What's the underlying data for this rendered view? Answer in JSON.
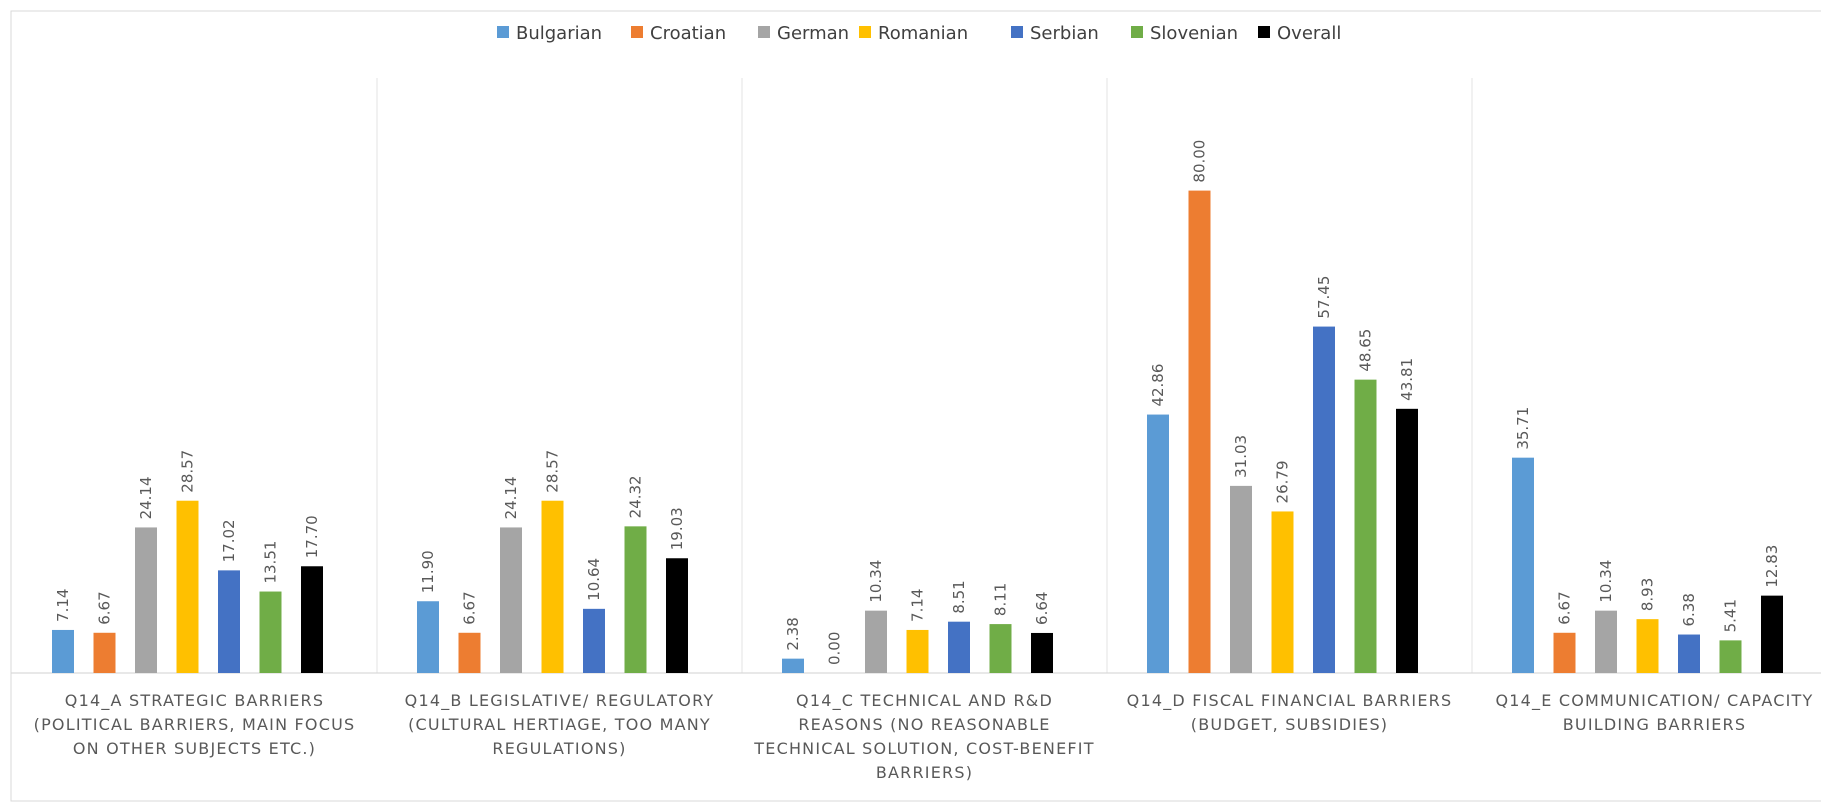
{
  "chart_data": {
    "type": "bar",
    "title": "",
    "xlabel": "",
    "ylabel": "",
    "ylim": [
      0,
      90
    ],
    "grid": false,
    "legend_position": "top",
    "categories": [
      [
        "Q14_A STRATEGIC BARRIERS",
        "(POLITICAL BARRIERS, MAIN FOCUS",
        "ON OTHER SUBJECTS ETC.)"
      ],
      [
        "Q14_B LEGISLATIVE/ REGULATORY",
        "(CULTURAL HERTIAGE, TOO MANY",
        "REGULATIONS)"
      ],
      [
        "Q14_C  TECHNICAL AND R&D",
        "REASONS (NO REASONABLE",
        "TECHNICAL SOLUTION, COST-BENEFIT",
        "BARRIERS)"
      ],
      [
        "Q14_D FISCAL FINANCIAL BARRIERS",
        "(BUDGET, SUBSIDIES)"
      ],
      [
        "Q14_E COMMUNICATION/ CAPACITY",
        "BUILDING BARRIERS"
      ]
    ],
    "series": [
      {
        "name": "Bulgarian",
        "color": "#5B9BD5",
        "values": [
          7.14,
          11.9,
          2.38,
          42.86,
          35.71
        ],
        "labels": [
          "7.14",
          "11.90",
          "2.38",
          "42.86",
          "35.71"
        ]
      },
      {
        "name": "Croatian",
        "color": "#ED7D31",
        "values": [
          6.67,
          6.67,
          0.0,
          80.0,
          6.67
        ],
        "labels": [
          "6.67",
          "6.67",
          "0.00",
          "80.00",
          "6.67"
        ]
      },
      {
        "name": "German",
        "color": "#A5A5A5",
        "values": [
          24.14,
          24.14,
          10.34,
          31.03,
          10.34
        ],
        "labels": [
          "24.14",
          "24.14",
          "10.34",
          "31.03",
          "10.34"
        ]
      },
      {
        "name": "Romanian",
        "color": "#FFC000",
        "values": [
          28.57,
          28.57,
          7.14,
          26.79,
          8.93
        ],
        "labels": [
          "28.57",
          "28.57",
          "7.14",
          "26.79",
          "8.93"
        ]
      },
      {
        "name": "Serbian",
        "color": "#4472C4",
        "values": [
          17.02,
          10.64,
          8.51,
          57.45,
          6.38
        ],
        "labels": [
          "17.02",
          "10.64",
          "8.51",
          "57.45",
          "6.38"
        ]
      },
      {
        "name": "Slovenian",
        "color": "#70AD47",
        "values": [
          13.51,
          24.32,
          8.11,
          48.65,
          5.41
        ],
        "labels": [
          "13.51",
          "24.32",
          "8.11",
          "48.65",
          "5.41"
        ]
      },
      {
        "name": "Overall",
        "color": "#000000",
        "values": [
          17.7,
          19.03,
          6.64,
          43.81,
          12.83
        ],
        "labels": [
          "17.70",
          "19.03",
          "6.64",
          "43.81",
          "12.83"
        ]
      }
    ]
  }
}
